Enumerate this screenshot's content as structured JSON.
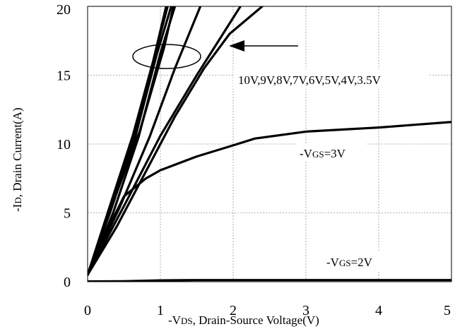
{
  "chart_data": {
    "type": "line",
    "title": "",
    "xlabel": {
      "prefix": "-V",
      "sub": "DS",
      "rest": ", Drain-Source Voltage(V)"
    },
    "ylabel": {
      "prefix": "-I",
      "sub": "D",
      "rest": ", Drain Current(A)"
    },
    "xlim": [
      0,
      5
    ],
    "ylim": [
      0,
      20
    ],
    "xticks": [
      "0",
      "1",
      "2",
      "3",
      "4",
      "5"
    ],
    "yticks": [
      "0",
      "5",
      "10",
      "15",
      "20"
    ],
    "grid": true,
    "series": [
      {
        "group": "3.5V-10V",
        "points": [
          [
            0,
            0.5
          ],
          [
            0.3,
            5
          ],
          [
            0.6,
            10
          ],
          [
            0.85,
            15
          ],
          [
            1.1,
            20
          ]
        ]
      },
      {
        "group": "3.5V-10V",
        "points": [
          [
            0,
            0.5
          ],
          [
            0.3,
            5.4
          ],
          [
            0.62,
            10.6
          ],
          [
            0.9,
            16
          ],
          [
            1.08,
            20
          ]
        ]
      },
      {
        "group": "3.5V-10V",
        "points": [
          [
            0,
            0.5
          ],
          [
            0.32,
            5.2
          ],
          [
            0.65,
            10.4
          ],
          [
            0.95,
            16.5
          ],
          [
            1.15,
            20
          ]
        ]
      },
      {
        "group": "3.5V-10V",
        "points": [
          [
            0,
            0.5
          ],
          [
            0.35,
            5
          ],
          [
            0.7,
            10.5
          ],
          [
            1.0,
            16.6
          ],
          [
            1.2,
            20
          ]
        ]
      },
      {
        "group": "3.5V-10V",
        "points": [
          [
            0,
            0.5
          ],
          [
            0.34,
            5.6
          ],
          [
            0.72,
            11
          ],
          [
            1.05,
            17
          ],
          [
            1.18,
            20
          ]
        ]
      },
      {
        "group": "3.5V-10V",
        "points": [
          [
            0,
            0.5
          ],
          [
            0.45,
            5.5
          ],
          [
            0.85,
            10.5
          ],
          [
            1.2,
            15.5
          ],
          [
            1.55,
            20
          ]
        ]
      },
      {
        "group": "3.5V-10V",
        "points": [
          [
            0,
            0.5
          ],
          [
            0.5,
            5.5
          ],
          [
            1.0,
            10.6
          ],
          [
            1.5,
            15
          ],
          [
            2.1,
            20
          ]
        ]
      },
      {
        "group": "3.5V-10V",
        "points": [
          [
            0,
            0.5
          ],
          [
            0.4,
            4
          ],
          [
            0.8,
            8
          ],
          [
            1.2,
            12
          ],
          [
            1.6,
            15.5
          ],
          [
            1.95,
            18
          ],
          [
            2.4,
            20
          ]
        ]
      },
      {
        "group": "3V",
        "points": [
          [
            0,
            0.5
          ],
          [
            0.2,
            3
          ],
          [
            0.5,
            6.2
          ],
          [
            0.8,
            7.5
          ],
          [
            1.0,
            8.1
          ],
          [
            1.5,
            9.1
          ],
          [
            2.0,
            9.9
          ],
          [
            2.3,
            10.4
          ],
          [
            3.0,
            10.9
          ],
          [
            4.0,
            11.2
          ],
          [
            4.5,
            11.4
          ],
          [
            5.0,
            11.6
          ]
        ]
      },
      {
        "group": "2V",
        "points": [
          [
            0,
            0.02
          ],
          [
            0.5,
            0.03
          ],
          [
            1.0,
            0.1
          ],
          [
            1.5,
            0.12
          ],
          [
            2.0,
            0.12
          ],
          [
            3.0,
            0.12
          ],
          [
            4.0,
            0.12
          ],
          [
            5.0,
            0.12
          ]
        ]
      }
    ],
    "annotations": {
      "arrow_text": "10V,9V,8V,7V,6V,5V,4V,3.5V",
      "vgs3": {
        "prefix": "-V",
        "sub": "GS",
        "rest": "=3V"
      },
      "vgs2": {
        "prefix": "-V",
        "sub": "GS",
        "rest": "=2V"
      }
    }
  }
}
